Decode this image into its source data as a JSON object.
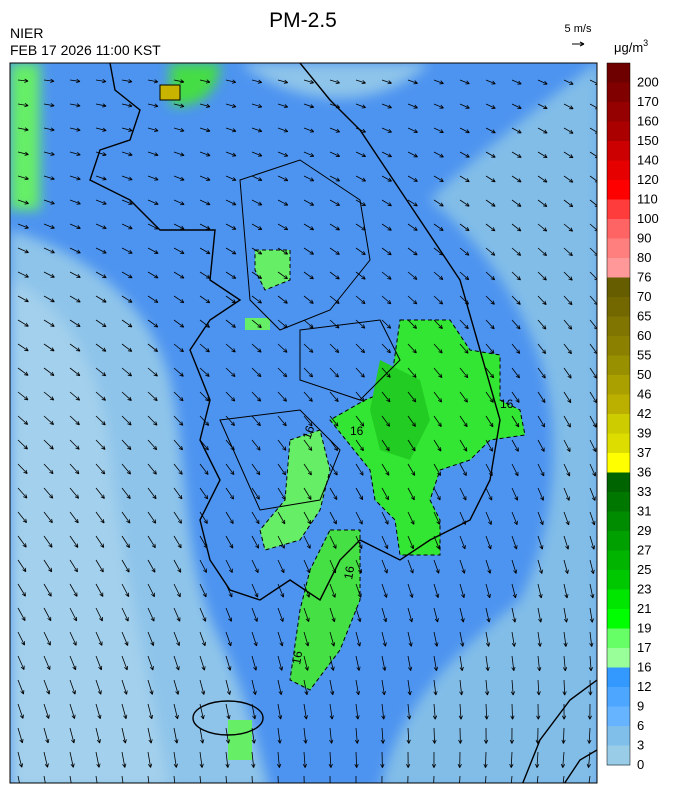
{
  "header": {
    "title": "PM-2.5",
    "agency": "NIER",
    "timestamp": "FEB 17 2026 11:00 KST",
    "wind_scale": "5 m/s"
  },
  "legend": {
    "unit": "μg/m",
    "unit_superscript": "3",
    "levels": [
      200,
      170,
      160,
      150,
      140,
      120,
      110,
      100,
      90,
      80,
      76,
      70,
      65,
      60,
      55,
      50,
      46,
      42,
      39,
      37,
      36,
      33,
      31,
      29,
      27,
      25,
      23,
      21,
      19,
      17,
      16,
      12,
      9,
      6,
      3,
      0
    ],
    "colors": [
      "#6e0000",
      "#800000",
      "#950000",
      "#aa0000",
      "#cc0000",
      "#e60000",
      "#ff0000",
      "#ff3c3c",
      "#ff6464",
      "#ff7f7f",
      "#ff9999",
      "#665c00",
      "#736800",
      "#807500",
      "#8c8000",
      "#999000",
      "#aaa000",
      "#bbb000",
      "#cccc00",
      "#dddd00",
      "#ffff00",
      "#006400",
      "#007800",
      "#008c00",
      "#00a000",
      "#00b400",
      "#00c800",
      "#00e600",
      "#00ff00",
      "#66ff66",
      "#99ff99",
      "#3399ff",
      "#4da6ff",
      "#66b3ff",
      "#7fbfea",
      "#99cce6"
    ]
  },
  "map": {
    "contour_labels": [
      16,
      16,
      16,
      16,
      16
    ]
  }
}
